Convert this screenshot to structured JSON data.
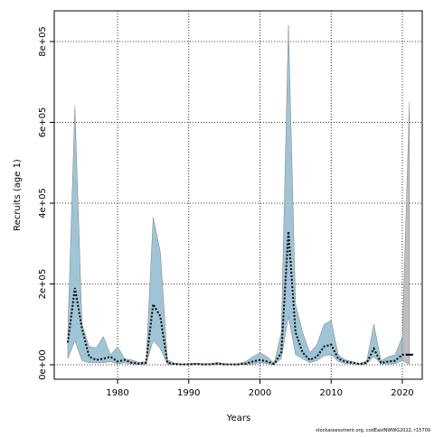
{
  "chart_data": {
    "type": "band-line",
    "x_label": "Years",
    "y_label": "Recruits (age 1)",
    "caption": "stockassessment.org, codEastNWWG2022, r15709",
    "x": [
      1973,
      1974,
      1975,
      1976,
      1977,
      1978,
      1979,
      1980,
      1981,
      1982,
      1983,
      1984,
      1985,
      1986,
      1987,
      1988,
      1989,
      1990,
      1991,
      1992,
      1993,
      1994,
      1995,
      1996,
      1997,
      1998,
      1999,
      2000,
      2001,
      2002,
      2003,
      2004,
      2005,
      2006,
      2007,
      2008,
      2009,
      2010,
      2011,
      2012,
      2013,
      2014,
      2015,
      2016,
      2017,
      2018,
      2019,
      2020,
      2021
    ],
    "values": [
      55000,
      190000,
      90000,
      20000,
      12000,
      15000,
      20000,
      8000,
      12000,
      5000,
      3000,
      5000,
      150000,
      120000,
      5000,
      2000,
      1000,
      1000,
      2000,
      1000,
      1000,
      3000,
      1000,
      1000,
      1000,
      3000,
      8000,
      12000,
      8000,
      2000,
      30000,
      330000,
      80000,
      30000,
      12000,
      20000,
      45000,
      50000,
      15000,
      8000,
      5000,
      2000,
      5000,
      40000,
      5000,
      8000,
      10000,
      25000,
      25000
    ],
    "upper": [
      80000,
      640000,
      100000,
      45000,
      42000,
      70000,
      25000,
      45000,
      15000,
      12000,
      6000,
      8000,
      365000,
      280000,
      12000,
      4000,
      2000,
      3000,
      4000,
      3000,
      3000,
      6000,
      3000,
      2000,
      3000,
      8000,
      20000,
      30000,
      20000,
      4000,
      80000,
      840000,
      150000,
      80000,
      30000,
      50000,
      100000,
      110000,
      25000,
      12000,
      8000,
      3000,
      10000,
      100000,
      10000,
      20000,
      25000,
      70000,
      650000
    ],
    "lower": [
      15000,
      60000,
      10000,
      5000,
      5000,
      5000,
      8000,
      2000,
      5000,
      2000,
      1000,
      2000,
      60000,
      40000,
      1000,
      500,
      500,
      500,
      1000,
      500,
      500,
      1000,
      500,
      500,
      500,
      1000,
      2000,
      5000,
      3000,
      500,
      15000,
      120000,
      25000,
      15000,
      5000,
      10000,
      22000,
      25000,
      8000,
      3000,
      2000,
      500,
      2000,
      20000,
      2000,
      2000,
      3000,
      10000,
      1000
    ],
    "color": "#000000",
    "band_color": "#9fc4d6",
    "last_band_color": "#bebebe",
    "xlim": [
      1971.1,
      2022.8
    ],
    "xticks": [
      1980,
      1990,
      2000,
      2010,
      2020
    ],
    "ylim": [
      -35700,
      876000
    ],
    "yticks": [
      {
        "value": 0,
        "label": "0e+00"
      },
      {
        "value": 200000,
        "label": "2e+05"
      },
      {
        "value": 400000,
        "label": "4e+05"
      },
      {
        "value": 600000,
        "label": "6e+05"
      },
      {
        "value": 800000,
        "label": "8e+05"
      }
    ],
    "grid": true
  }
}
